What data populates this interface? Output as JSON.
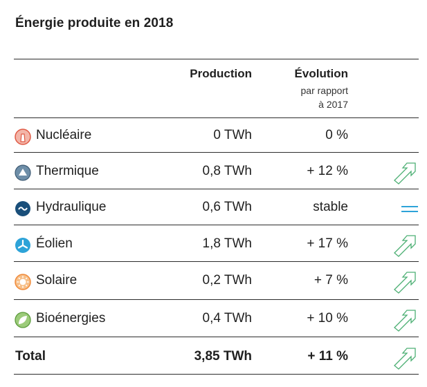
{
  "title": "Énergie produite en 2018",
  "headers": {
    "production": "Production",
    "evolution": "Évolution",
    "evolution_sub_1": "par rapport",
    "evolution_sub_2": "à 2017"
  },
  "rows": [
    {
      "name": "Nucléaire",
      "production": "0 TWh",
      "evolution": "0 %",
      "icon": "nuclear-icon",
      "color": "#e05a45",
      "trend": "none"
    },
    {
      "name": "Thermique",
      "production": "0,8 TWh",
      "evolution": "+ 12 %",
      "icon": "thermal-icon",
      "color": "#6e8ea8",
      "trend": "up"
    },
    {
      "name": "Hydraulique",
      "production": "0,6 TWh",
      "evolution": "stable",
      "icon": "hydro-icon",
      "color": "#1a5a8a",
      "trend": "stable"
    },
    {
      "name": "Éolien",
      "production": "1,8 TWh",
      "evolution": "+ 17 %",
      "icon": "wind-icon",
      "color": "#2da3d8",
      "trend": "up"
    },
    {
      "name": "Solaire",
      "production": "0,2 TWh",
      "evolution": "+ 7 %",
      "icon": "solar-icon",
      "color": "#f08a3a",
      "trend": "up"
    },
    {
      "name": "Bioénergies",
      "production": "0,4 TWh",
      "evolution": "+ 10 %",
      "icon": "bioenergy-icon",
      "color": "#7ab648",
      "trend": "up"
    }
  ],
  "total": {
    "name": "Total",
    "production": "3,85 TWh",
    "evolution": "+ 11 %",
    "trend": "up"
  },
  "colors": {
    "trend_up": "#4caf73",
    "trend_stable": "#2da3d8",
    "rule": "#2b2b2b"
  }
}
